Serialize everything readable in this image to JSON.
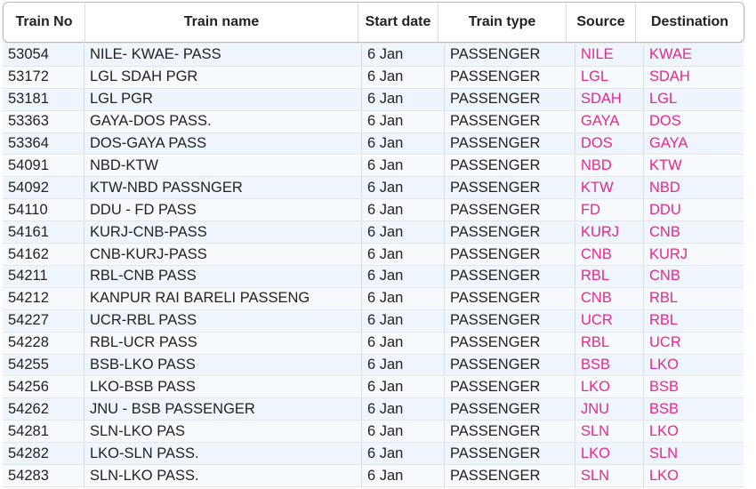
{
  "header": {
    "columns": [
      "Train No",
      "Train name",
      "Start date",
      "Train type",
      "Source",
      "Destination"
    ]
  },
  "table": {
    "rows": [
      [
        "53054",
        "NILE- KWAE- PASS",
        "6 Jan",
        "PASSENGER",
        "NILE",
        "KWAE"
      ],
      [
        "53172",
        "LGL SDAH PGR",
        "6 Jan",
        "PASSENGER",
        "LGL",
        "SDAH"
      ],
      [
        "53181",
        "LGL PGR",
        "6 Jan",
        "PASSENGER",
        "SDAH",
        "LGL"
      ],
      [
        "53363",
        "GAYA-DOS PASS.",
        "6 Jan",
        "PASSENGER",
        "GAYA",
        "DOS"
      ],
      [
        "53364",
        "DOS-GAYA PASS",
        "6 Jan",
        "PASSENGER",
        "DOS",
        "GAYA"
      ],
      [
        "54091",
        "NBD-KTW",
        "6 Jan",
        "PASSENGER",
        "NBD",
        "KTW"
      ],
      [
        "54092",
        "KTW-NBD PASSNGER",
        "6 Jan",
        "PASSENGER",
        "KTW",
        "NBD"
      ],
      [
        "54110",
        "DDU - FD PASS",
        "6 Jan",
        "PASSENGER",
        "FD",
        "DDU"
      ],
      [
        "54161",
        "KURJ-CNB-PASS",
        "6 Jan",
        "PASSENGER",
        "KURJ",
        "CNB"
      ],
      [
        "54162",
        "CNB-KURJ-PASS",
        "6 Jan",
        "PASSENGER",
        "CNB",
        "KURJ"
      ],
      [
        "54211",
        "RBL-CNB PASS",
        "6 Jan",
        "PASSENGER",
        "RBL",
        "CNB"
      ],
      [
        "54212",
        "KANPUR RAI BARELI PASSENG",
        "6 Jan",
        "PASSENGER",
        "CNB",
        "RBL"
      ],
      [
        "54227",
        "UCR-RBL PASS",
        "6 Jan",
        "PASSENGER",
        "UCR",
        "RBL"
      ],
      [
        "54228",
        "RBL-UCR PASS",
        "6 Jan",
        "PASSENGER",
        "RBL",
        "UCR"
      ],
      [
        "54255",
        "BSB-LKO PASS",
        "6 Jan",
        "PASSENGER",
        "BSB",
        "LKO"
      ],
      [
        "54256",
        "LKO-BSB PASS",
        "6 Jan",
        "PASSENGER",
        "LKO",
        "BSB"
      ],
      [
        "54262",
        "JNU - BSB PASSENGER",
        "6 Jan",
        "PASSENGER",
        "JNU",
        "BSB"
      ],
      [
        "54281",
        "SLN-LKO PAS",
        "6 Jan",
        "PASSENGER",
        "SLN",
        "LKO"
      ],
      [
        "54282",
        "LKO-SLN PASS.",
        "6 Jan",
        "PASSENGER",
        "LKO",
        "SLN"
      ],
      [
        "54283",
        "SLN-LKO PASS.",
        "6 Jan",
        "PASSENGER",
        "SLN",
        "LKO"
      ]
    ]
  }
}
